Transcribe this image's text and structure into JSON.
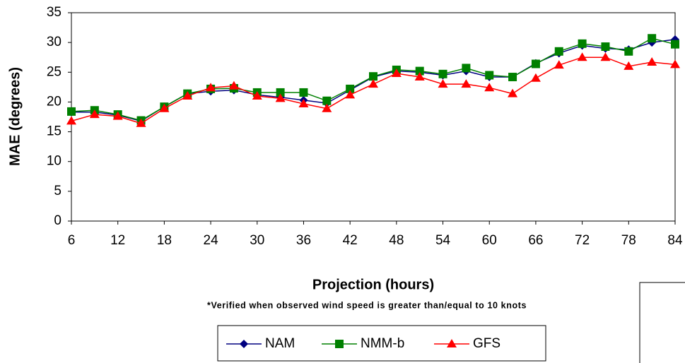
{
  "chart_data": {
    "type": "line",
    "y_label": "MAE (degrees)",
    "x_label": "Projection (hours)",
    "note": "*Verified when observed wind speed is greater than/equal to 10 knots",
    "x": [
      6,
      9,
      12,
      15,
      18,
      21,
      24,
      27,
      30,
      33,
      36,
      39,
      42,
      45,
      48,
      51,
      54,
      57,
      60,
      63,
      66,
      69,
      72,
      75,
      78,
      81,
      84
    ],
    "series": [
      {
        "name": "NAM",
        "color": "#000080",
        "marker": "diamond",
        "values": [
          18.3,
          18.3,
          17.8,
          16.8,
          19.2,
          21.4,
          21.8,
          22.0,
          21.2,
          20.8,
          20.3,
          19.8,
          22.0,
          24.2,
          25.2,
          25.0,
          24.5,
          25.2,
          24.2,
          24.2,
          26.5,
          28.2,
          29.5,
          29.0,
          28.8,
          30.0,
          30.5
        ]
      },
      {
        "name": "NMM-b",
        "color": "#008000",
        "marker": "square",
        "values": [
          18.4,
          18.6,
          17.9,
          16.9,
          19.2,
          21.4,
          22.2,
          22.3,
          21.6,
          21.6,
          21.6,
          20.2,
          22.2,
          24.3,
          25.4,
          25.2,
          24.7,
          25.7,
          24.5,
          24.2,
          26.4,
          28.5,
          29.8,
          29.3,
          28.5,
          30.7,
          29.7
        ]
      },
      {
        "name": "GFS",
        "color": "#ff0000",
        "marker": "triangle",
        "values": [
          16.8,
          17.9,
          17.6,
          16.4,
          18.9,
          21.0,
          22.4,
          22.7,
          21.0,
          20.6,
          19.7,
          18.9,
          21.2,
          23.0,
          24.8,
          24.2,
          23.0,
          23.0,
          22.4,
          21.4,
          24.0,
          26.2,
          27.5,
          27.5,
          26.0,
          26.7,
          26.3
        ]
      }
    ],
    "xlim": [
      6,
      84
    ],
    "xticks": [
      6,
      12,
      18,
      24,
      30,
      36,
      42,
      48,
      54,
      60,
      66,
      72,
      78,
      84
    ],
    "ylim": [
      0,
      35
    ],
    "yticks": [
      0,
      5,
      10,
      15,
      20,
      25,
      30,
      35
    ],
    "grid": false,
    "legend": "bottom"
  }
}
